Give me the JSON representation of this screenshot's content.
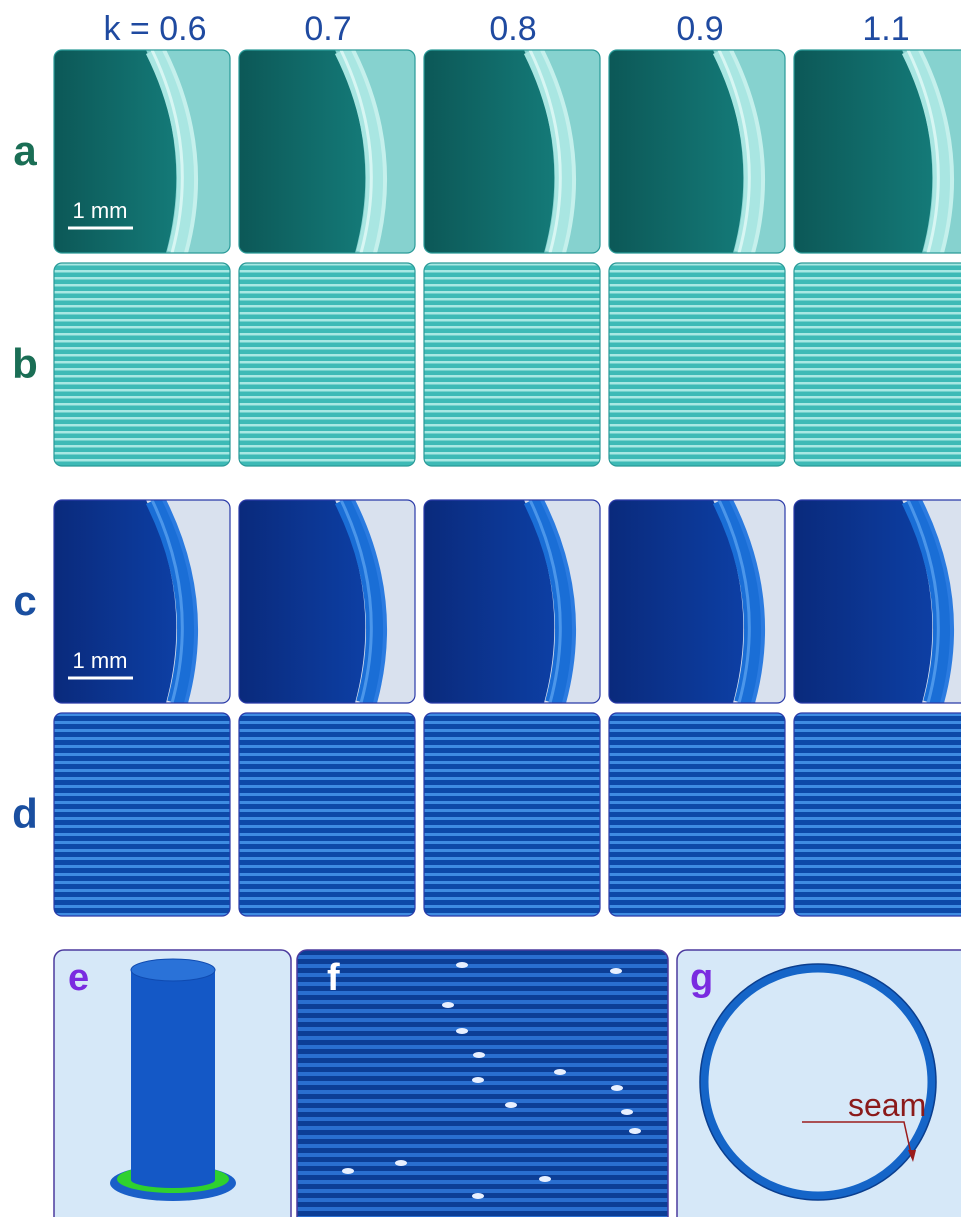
{
  "columns": [
    "k = 0.6",
    "0.7",
    "0.8",
    "0.9",
    "1.1"
  ],
  "rows": [
    {
      "label": "a"
    },
    {
      "label": "b"
    },
    {
      "label": "c"
    },
    {
      "label": "d"
    }
  ],
  "scale_bars": [
    "1 mm",
    "1 mm"
  ],
  "panels": [
    {
      "label": "e"
    },
    {
      "label": "f"
    },
    {
      "label": "g"
    }
  ],
  "annotation": "seam"
}
